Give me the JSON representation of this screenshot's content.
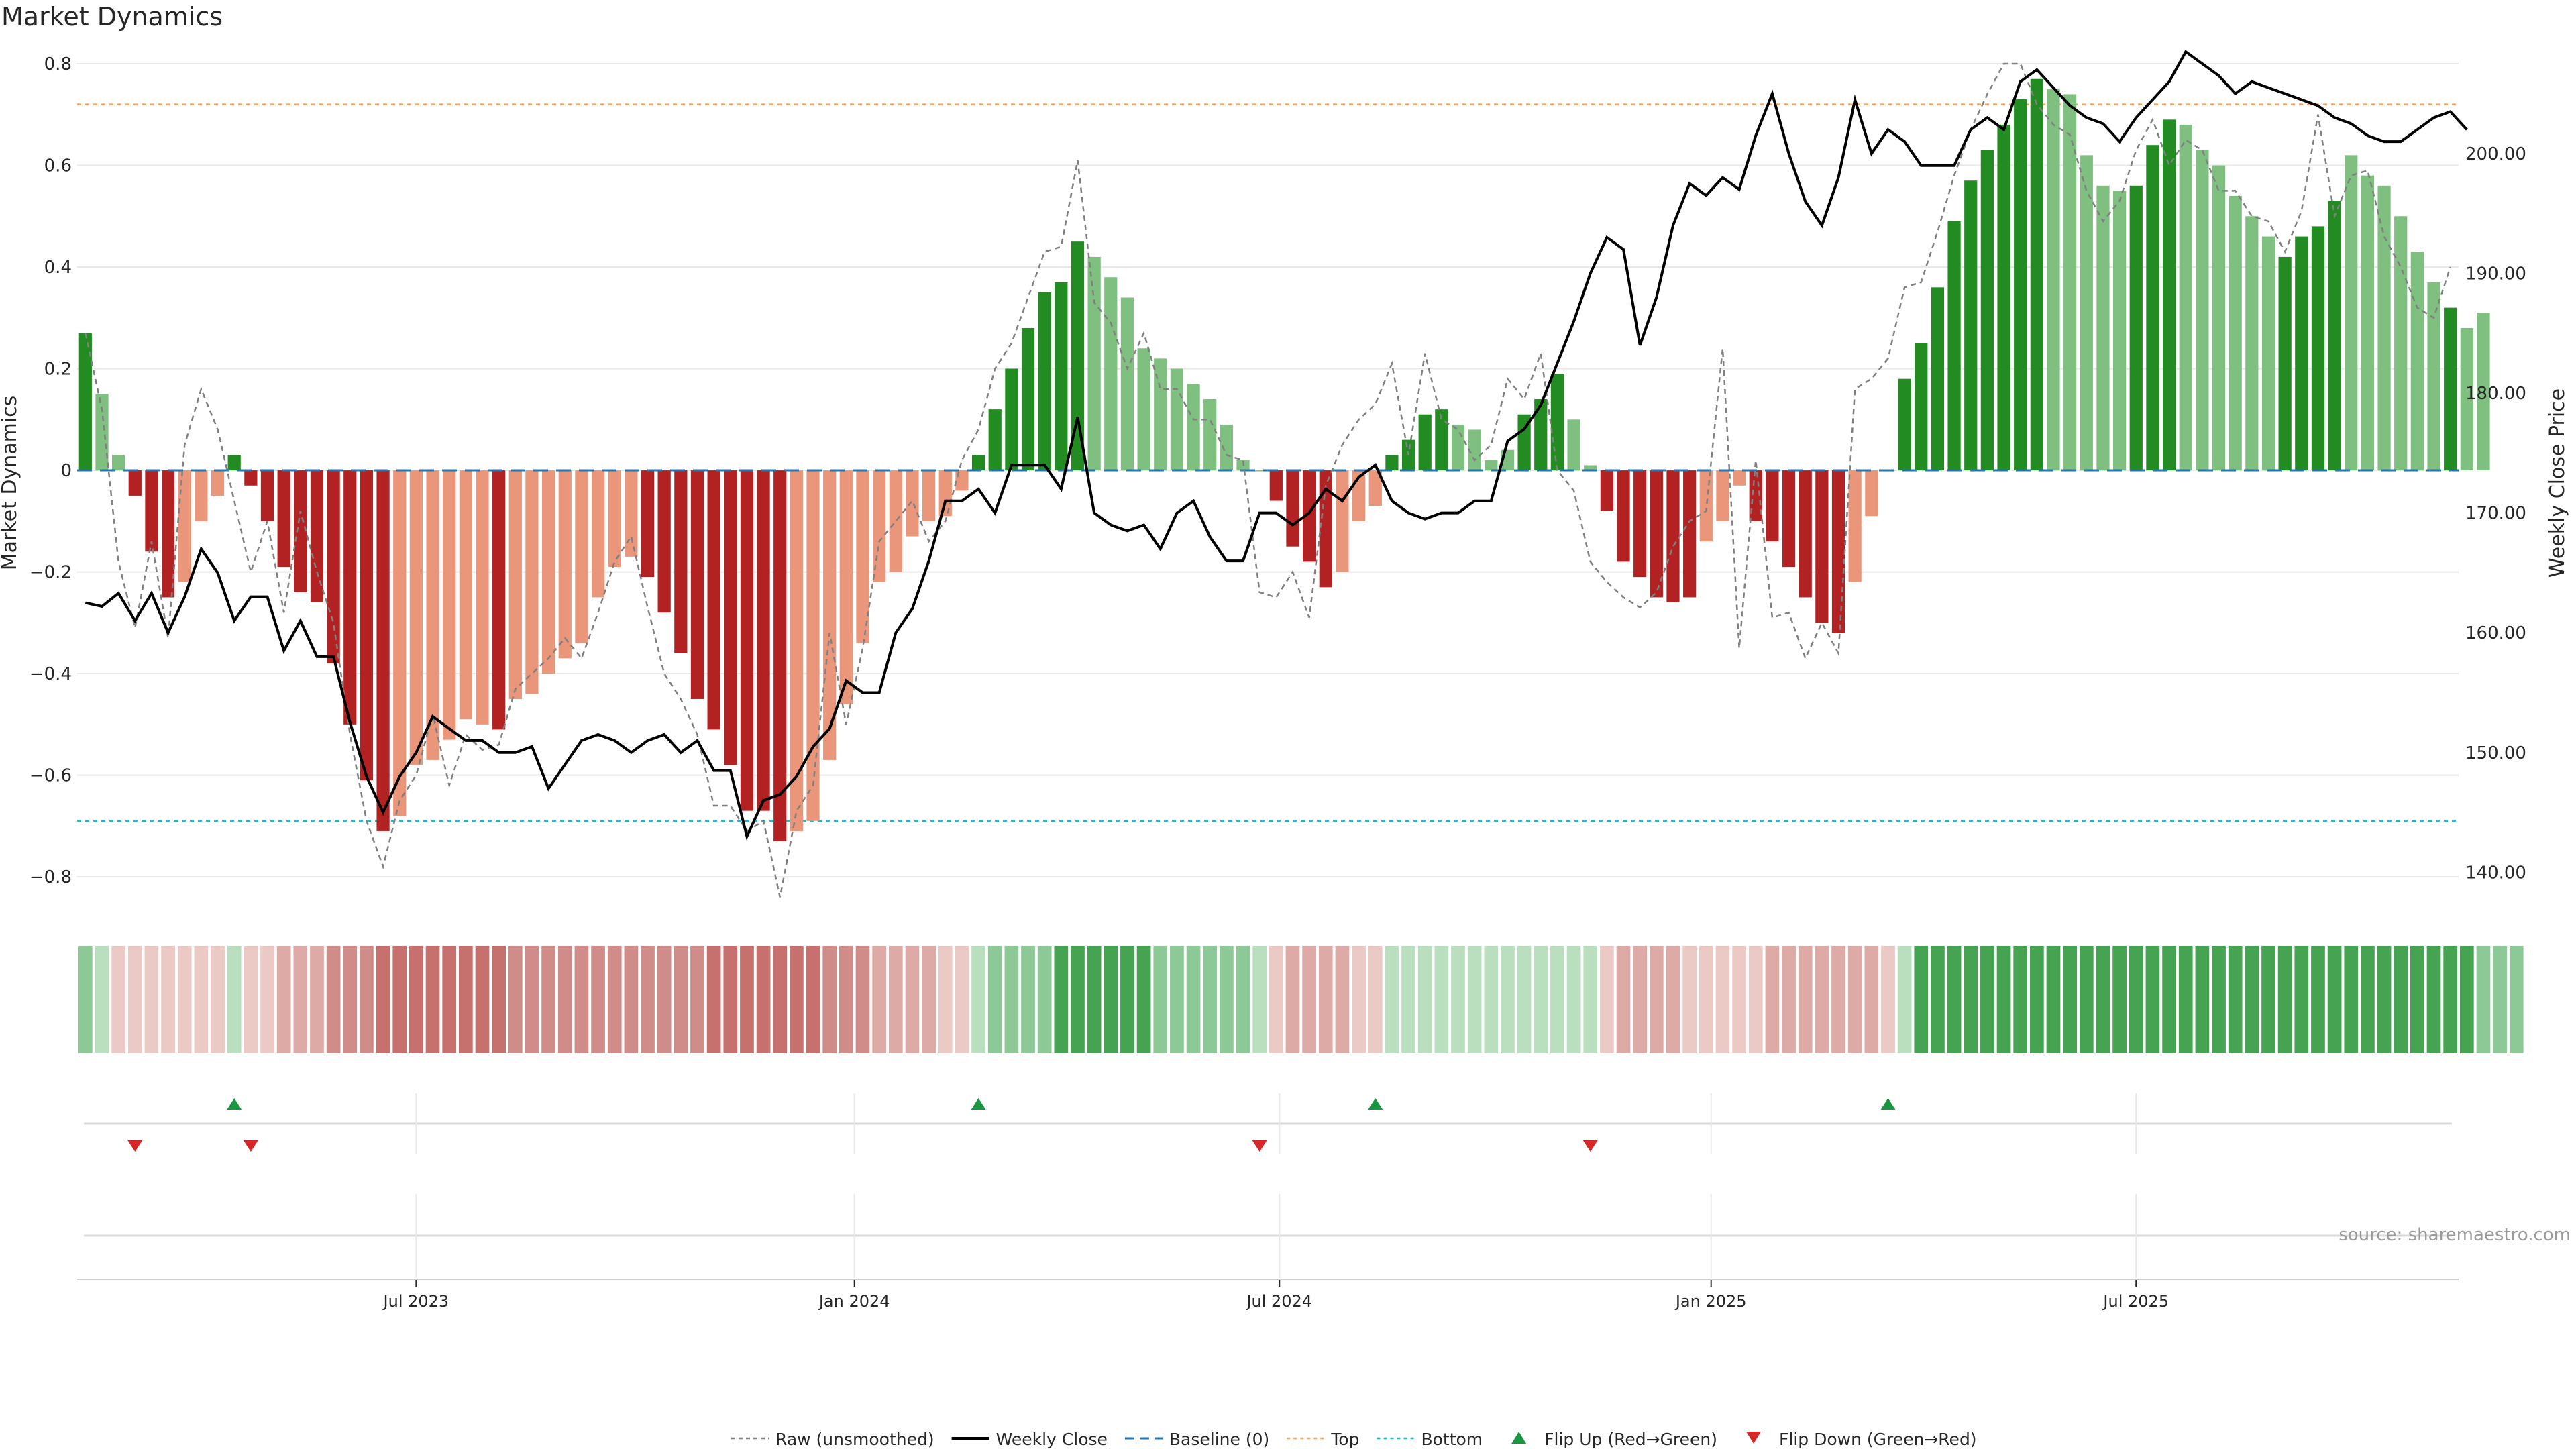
{
  "page": {
    "title": "Market Dynamics",
    "source": "source: sharemaestro.com"
  },
  "colors": {
    "strong_green": "#228b22",
    "light_green": "#7fbf7f",
    "strong_red": "#b22222",
    "light_red": "#e9967a",
    "price_line": "#000000",
    "raw_line": "#808080",
    "baseline": "#1f77b4",
    "top": "#f4a460",
    "bottom": "#17becf",
    "flip_up": "#1a9641",
    "flip_down": "#d62728",
    "grid": "#e8e8e8"
  },
  "chart_data": {
    "type": "bar",
    "title": "Market Dynamics",
    "ylabel_left": "Market Dynamics",
    "ylabel_right": "Weekly Close Price",
    "ylim_left": [
      -0.85,
      0.8
    ],
    "ylim_right": [
      137.5,
      207.5
    ],
    "left_ticks": [
      "0.8",
      "0.6",
      "0.4",
      "0.2",
      "0",
      "−0.2",
      "−0.4",
      "−0.6",
      "−0.8"
    ],
    "left_tick_values": [
      0.8,
      0.6,
      0.4,
      0.2,
      0,
      -0.2,
      -0.4,
      -0.6,
      -0.8
    ],
    "right_ticks": [
      "200.00",
      "190.00",
      "180.00",
      "170.00",
      "160.00",
      "150.00",
      "140.00"
    ],
    "right_tick_values": [
      200,
      190,
      180,
      170,
      160,
      150,
      140
    ],
    "x_ticks": [
      "Jul 2023",
      "Jan 2024",
      "Jul 2024",
      "Jan 2025",
      "Jul 2025"
    ],
    "x_tick_index": [
      20,
      46.5,
      72.2,
      98.3,
      124
    ],
    "grid": true,
    "top_level": 0.72,
    "bottom_level": -0.69,
    "baseline": 0,
    "weeks": 144,
    "start_week": "2023-02-13",
    "dynamics": [
      0.27,
      0.15,
      0.03,
      -0.05,
      -0.16,
      -0.25,
      -0.22,
      -0.1,
      -0.05,
      0.03,
      -0.03,
      -0.1,
      -0.19,
      -0.24,
      -0.26,
      -0.38,
      -0.5,
      -0.61,
      -0.71,
      -0.68,
      -0.58,
      -0.57,
      -0.53,
      -0.49,
      -0.5,
      -0.51,
      -0.45,
      -0.44,
      -0.4,
      -0.37,
      -0.34,
      -0.25,
      -0.19,
      -0.17,
      -0.21,
      -0.28,
      -0.36,
      -0.45,
      -0.51,
      -0.58,
      -0.67,
      -0.67,
      -0.73,
      -0.71,
      -0.69,
      -0.57,
      -0.46,
      -0.34,
      -0.22,
      -0.2,
      -0.13,
      -0.1,
      -0.09,
      -0.04,
      0.03,
      0.12,
      0.2,
      0.28,
      0.35,
      0.37,
      0.45,
      0.42,
      0.38,
      0.34,
      0.24,
      0.22,
      0.2,
      0.17,
      0.14,
      0.09,
      0.02,
      0,
      -0.06,
      -0.15,
      -0.18,
      -0.23,
      -0.2,
      -0.1,
      -0.07,
      0.03,
      0.06,
      0.11,
      0.12,
      0.09,
      0.08,
      0.02,
      0.04,
      0.11,
      0.14,
      0.19,
      0.1,
      0.01,
      -0.08,
      -0.18,
      -0.21,
      -0.25,
      -0.26,
      -0.25,
      -0.14,
      -0.1,
      -0.03,
      -0.1,
      -0.14,
      -0.19,
      -0.25,
      -0.3,
      -0.32,
      -0.22,
      -0.09,
      0,
      0.18,
      0.25,
      0.36,
      0.49,
      0.57,
      0.63,
      0.68,
      0.73,
      0.77,
      0.75,
      0.74,
      0.62,
      0.56,
      0.55,
      0.56,
      0.64,
      0.69,
      0.68,
      0.63,
      0.6,
      0.54,
      0.5,
      0.46,
      0.42,
      0.46,
      0.48,
      0.53,
      0.62,
      0.58,
      0.56,
      0.5,
      0.43,
      0.37,
      0.32,
      0.28,
      0.31
    ],
    "bar_shade": [
      1,
      0,
      0,
      1,
      1,
      1,
      0,
      0,
      0,
      1,
      1,
      1,
      1,
      1,
      1,
      1,
      1,
      1,
      1,
      0,
      0,
      0,
      0,
      0,
      0,
      1,
      0,
      0,
      0,
      0,
      0,
      0,
      0,
      0,
      1,
      1,
      1,
      1,
      1,
      1,
      1,
      1,
      1,
      0,
      0,
      0,
      0,
      0,
      0,
      0,
      0,
      0,
      0,
      0,
      1,
      1,
      1,
      1,
      1,
      1,
      1,
      0,
      0,
      0,
      0,
      0,
      0,
      0,
      0,
      0,
      0,
      0,
      1,
      1,
      1,
      1,
      0,
      0,
      0,
      1,
      1,
      1,
      1,
      0,
      0,
      0,
      0,
      1,
      1,
      1,
      0,
      0,
      1,
      1,
      1,
      1,
      1,
      1,
      0,
      0,
      0,
      1,
      1,
      1,
      1,
      1,
      1,
      0,
      0,
      0,
      1,
      1,
      1,
      1,
      1,
      1,
      1,
      1,
      1,
      0,
      0,
      0,
      0,
      0,
      1,
      1,
      1,
      0,
      0,
      0,
      0,
      0,
      0,
      1,
      1,
      1,
      1,
      0,
      0,
      0,
      0,
      0,
      0,
      1
    ],
    "raw": [
      0.27,
      0.12,
      -0.18,
      -0.31,
      -0.14,
      -0.33,
      0.05,
      0.16,
      0.08,
      -0.06,
      -0.2,
      -0.1,
      -0.28,
      -0.08,
      -0.2,
      -0.3,
      -0.52,
      -0.69,
      -0.78,
      -0.65,
      -0.6,
      -0.48,
      -0.62,
      -0.52,
      -0.55,
      -0.54,
      -0.43,
      -0.4,
      -0.37,
      -0.33,
      -0.37,
      -0.28,
      -0.18,
      -0.13,
      -0.27,
      -0.4,
      -0.45,
      -0.52,
      -0.66,
      -0.66,
      -0.71,
      -0.69,
      -0.84,
      -0.67,
      -0.62,
      -0.32,
      -0.5,
      -0.35,
      -0.14,
      -0.1,
      -0.06,
      -0.14,
      -0.1,
      0.02,
      0.08,
      0.2,
      0.25,
      0.34,
      0.43,
      0.44,
      0.61,
      0.33,
      0.29,
      0.2,
      0.27,
      0.16,
      0.16,
      0.1,
      0.1,
      0.03,
      0.02,
      -0.24,
      -0.25,
      -0.2,
      -0.29,
      -0.03,
      0.05,
      0.1,
      0.13,
      0.21,
      0.03,
      0.23,
      0.1,
      0.08,
      0.02,
      0.05,
      0.18,
      0.14,
      0.23,
      0.0,
      -0.04,
      -0.18,
      -0.22,
      -0.25,
      -0.27,
      -0.24,
      -0.15,
      -0.1,
      -0.08,
      0.24,
      -0.35,
      0.02,
      -0.29,
      -0.28,
      -0.37,
      -0.3,
      -0.36,
      0.16,
      0.18,
      0.22,
      0.36,
      0.37,
      0.47,
      0.58,
      0.67,
      0.74,
      0.8,
      0.8,
      0.72,
      0.68,
      0.66,
      0.55,
      0.49,
      0.53,
      0.63,
      0.69,
      0.6,
      0.65,
      0.63,
      0.55,
      0.55,
      0.5,
      0.49,
      0.43,
      0.51,
      0.7,
      0.5,
      0.58,
      0.59,
      0.46,
      0.4,
      0.32,
      0.3,
      0.4
    ],
    "close": [
      162.5,
      162.2,
      163.3,
      161,
      163.3,
      160,
      163,
      167,
      165,
      161,
      163,
      163,
      158.5,
      161,
      158,
      158,
      152.5,
      148,
      145,
      148,
      150,
      153,
      152,
      151,
      151,
      150,
      150,
      150.5,
      147,
      149,
      151,
      151.5,
      151,
      150,
      151,
      151.5,
      150,
      151,
      148.5,
      148.5,
      143,
      146,
      146.5,
      148,
      150.5,
      152,
      156,
      155,
      155,
      160,
      162,
      166,
      171,
      171,
      172,
      170,
      174,
      174,
      174,
      172,
      178,
      170,
      169,
      168.5,
      169,
      167,
      170,
      171,
      168,
      166,
      166,
      170,
      170,
      169,
      170,
      172,
      171,
      173,
      174,
      171,
      170,
      169.5,
      170,
      170,
      171,
      171,
      176,
      177,
      179,
      182.5,
      186,
      190,
      193,
      192,
      184,
      188,
      194,
      197.5,
      196.5,
      198,
      197,
      201.5,
      205,
      200,
      196,
      194,
      198,
      204.5,
      200,
      202,
      201,
      199,
      199,
      199,
      202,
      203,
      202,
      206,
      207,
      205.5,
      204,
      203,
      202.5,
      201,
      203,
      204.5,
      206,
      208.5,
      207.5,
      206.5,
      205,
      206,
      205.5,
      205,
      204.5,
      204,
      203,
      202.5,
      201.5,
      201,
      201,
      202,
      203,
      203.5,
      202
    ],
    "flip_up_index": [
      9,
      54,
      78,
      109
    ],
    "flip_down_index": [
      3,
      10,
      71,
      91
    ],
    "heat_level": [
      2,
      1,
      -1,
      -1,
      -1,
      -1,
      -1,
      -1,
      -1,
      1,
      -1,
      -1,
      -2,
      -2,
      -2,
      -3,
      -3,
      -3,
      -4,
      -4,
      -4,
      -4,
      -4,
      -4,
      -4,
      -4,
      -3,
      -3,
      -3,
      -3,
      -3,
      -3,
      -3,
      -3,
      -3,
      -3,
      -3,
      -3,
      -4,
      -4,
      -4,
      -4,
      -4,
      -4,
      -4,
      -3,
      -3,
      -3,
      -2,
      -2,
      -2,
      -2,
      -1,
      -1,
      1,
      2,
      2,
      2,
      2,
      3,
      3,
      3,
      3,
      3,
      3,
      2,
      2,
      2,
      2,
      2,
      2,
      1,
      -1,
      -2,
      -2,
      -2,
      -2,
      -1,
      -1,
      1,
      1,
      1,
      1,
      1,
      1,
      1,
      1,
      1,
      1,
      1,
      1,
      1,
      -1,
      -2,
      -2,
      -2,
      -2,
      -1,
      -1,
      -1,
      -1,
      -1,
      -2,
      -2,
      -2,
      -2,
      -2,
      -2,
      -2,
      -1,
      1,
      3,
      3,
      3,
      3,
      3,
      3,
      3,
      3,
      3,
      3,
      3,
      3,
      3,
      3,
      3,
      3,
      3,
      3,
      3,
      3,
      3,
      3,
      3,
      3,
      3,
      3,
      3,
      3,
      3,
      3,
      3,
      3,
      3,
      3,
      2,
      2,
      2
    ]
  },
  "legend": {
    "raw": "Raw (unsmoothed)",
    "close": "Weekly Close",
    "baseline": "Baseline (0)",
    "top": "Top",
    "bottom": "Bottom",
    "flip_up": "Flip Up (Red→Green)",
    "flip_down": "Flip Down (Green→Red)"
  }
}
